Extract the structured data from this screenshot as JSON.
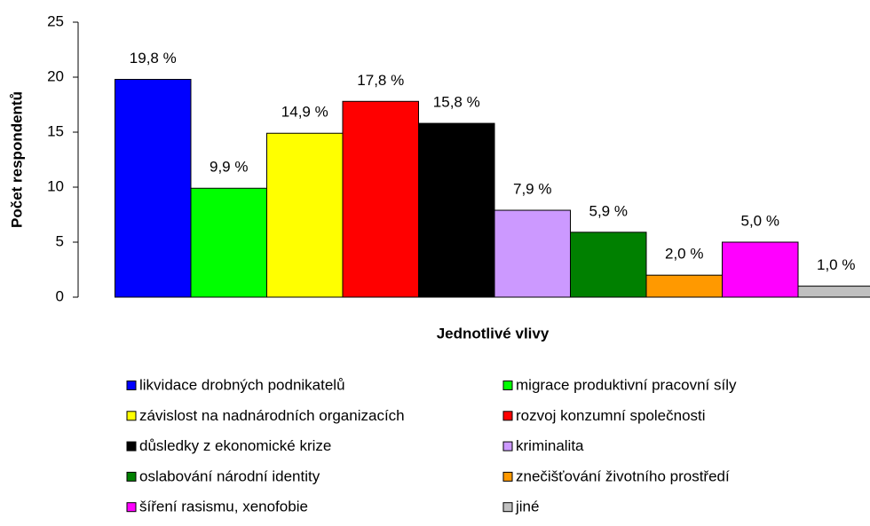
{
  "chart_data": {
    "type": "bar",
    "ylabel": "Počet respondentů",
    "xlabel": "Jednotlivé vlivy",
    "categories": [
      "likvidace drobných podnikatelů",
      "migrace produktivní pracovní síly",
      "závislost na nadnárodních organizacích",
      "rozvoj konzumní společnosti",
      "důsledky z ekonomické krize",
      "kriminalita",
      "oslabování národní identity",
      "znečišťování životního prostředí",
      "šíření rasismu, xenofobie",
      "jiné"
    ],
    "values": [
      19.8,
      9.9,
      14.9,
      17.8,
      15.8,
      7.9,
      5.9,
      2.0,
      5.0,
      1.0
    ],
    "value_labels": [
      "19,8 %",
      "9,9 %",
      "14,9 %",
      "17,8 %",
      "15,8 %",
      "7,9 %",
      "5,9 %",
      "2,0 %",
      "5,0 %",
      "1,0 %"
    ],
    "colors": [
      "#0000ff",
      "#00ff00",
      "#ffff00",
      "#ff0000",
      "#000000",
      "#cc99ff",
      "#008000",
      "#ff9900",
      "#ff00ff",
      "#c0c0c0"
    ],
    "ylim": [
      0,
      25
    ],
    "yticks": [
      0,
      5,
      10,
      15,
      20,
      25
    ],
    "grid": false
  }
}
